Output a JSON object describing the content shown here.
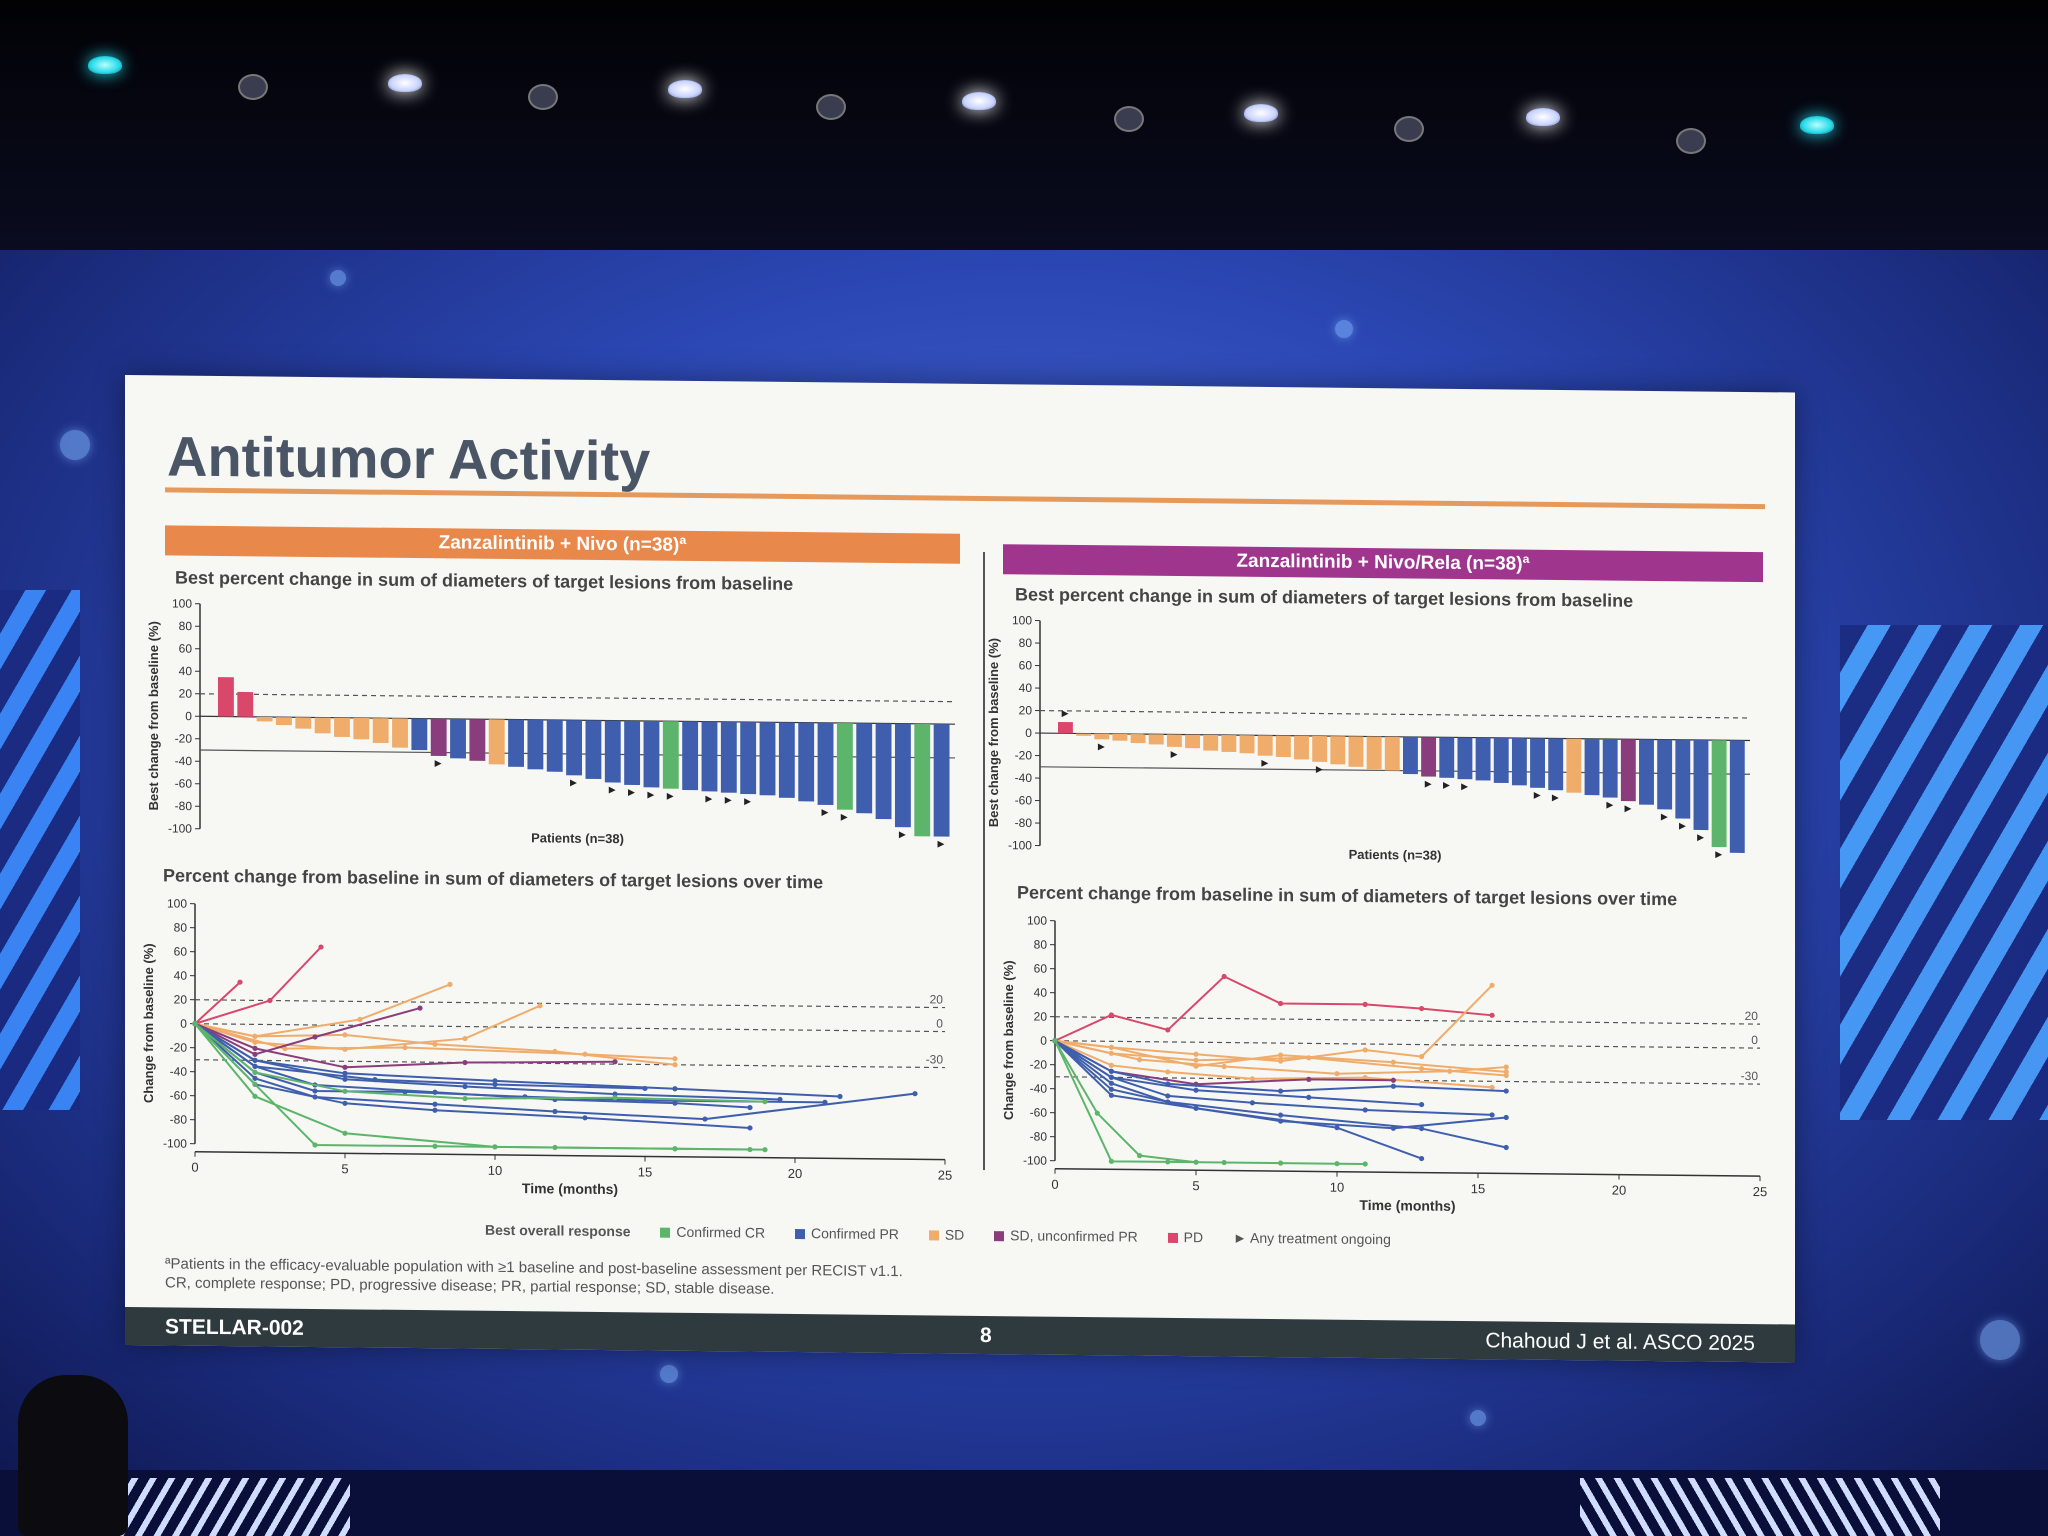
{
  "slide": {
    "title": "Antitumor Activity",
    "left_panel_title": "Zanzalintinib + Nivo (n=38)ª",
    "right_panel_title": "Zanzalintinib + Nivo/Rela (n=38)ª",
    "waterfall_subtitle": "Best percent change in sum of diameters of target lesions from baseline",
    "spider_subtitle": "Percent change from baseline in sum of diameters of target lesions over time",
    "footnote_1": "ªPatients in the efficacy-evaluable population with ≥1 baseline and post-baseline assessment per RECIST v1.1.",
    "footnote_2": "CR, complete response; PD, progressive disease; PR, partial response; SD, stable disease.",
    "footer_left": "STELLAR-002",
    "footer_page": "8",
    "footer_right": "Chahoud J et al. ASCO 2025",
    "legend": {
      "title": "Best overall response",
      "items": [
        {
          "label": "Confirmed CR",
          "color": "#5db56b"
        },
        {
          "label": "Confirmed PR",
          "color": "#3f5fae"
        },
        {
          "label": "SD",
          "color": "#efac6b"
        },
        {
          "label": "SD, unconfirmed PR",
          "color": "#8a3d7c"
        },
        {
          "label": "PD",
          "color": "#d9476a"
        }
      ],
      "ongoing_label": "Any treatment ongoing"
    },
    "colors": {
      "left_header": "#e8884a",
      "right_header": "#a0358e"
    }
  },
  "chart_data": [
    {
      "type": "bar",
      "panel": "Zanzalintinib + Nivo (n=38)ª",
      "title": "Best percent change in sum of diameters of target lesions from baseline",
      "xlabel": "Patients (n=38)",
      "ylabel": "Best change from baseline (%)",
      "ylim": [
        -100,
        100
      ],
      "yticks": [
        100,
        80,
        60,
        40,
        20,
        0,
        -20,
        -40,
        -60,
        -80,
        -100
      ],
      "reference_lines": [
        20,
        -30
      ],
      "values": [
        35,
        22,
        -4,
        -7,
        -10,
        -14,
        -17,
        -19,
        -22,
        -26,
        -28,
        -33,
        -35,
        -37,
        -40,
        -42,
        -44,
        -46,
        -49,
        -52,
        -55,
        -57,
        -59,
        -60,
        -61,
        -62,
        -63,
        -64,
        -65,
        -67,
        -70,
        -73,
        -77,
        -80,
        -85,
        -92,
        -100,
        -100
      ],
      "responses": [
        "PD",
        "PD",
        "SD",
        "SD",
        "SD",
        "SD",
        "SD",
        "SD",
        "SD",
        "SD",
        "PR",
        "SDu",
        "PR",
        "SDu",
        "SD",
        "PR",
        "PR",
        "PR",
        "PR",
        "PR",
        "PR",
        "PR",
        "PR",
        "CR",
        "PR",
        "PR",
        "PR",
        "PR",
        "PR",
        "PR",
        "PR",
        "PR",
        "CR",
        "PR",
        "PR",
        "PR",
        "CR",
        "PR"
      ],
      "ongoing": [
        false,
        false,
        false,
        false,
        false,
        false,
        false,
        false,
        false,
        false,
        false,
        true,
        false,
        false,
        false,
        false,
        false,
        false,
        true,
        false,
        true,
        true,
        true,
        true,
        false,
        true,
        true,
        true,
        false,
        false,
        false,
        true,
        true,
        false,
        false,
        true,
        false,
        true
      ]
    },
    {
      "type": "bar",
      "panel": "Zanzalintinib + Nivo/Rela (n=38)ª",
      "title": "Best percent change in sum of diameters of target lesions from baseline",
      "xlabel": "Patients (n=38)",
      "ylabel": "Best change from baseline (%)",
      "ylim": [
        -100,
        100
      ],
      "yticks": [
        100,
        80,
        60,
        40,
        20,
        0,
        -20,
        -40,
        -60,
        -80,
        -100
      ],
      "reference_lines": [
        20,
        -30
      ],
      "values": [
        10,
        -2,
        -5,
        -6,
        -8,
        -9,
        -11,
        -12,
        -14,
        -15,
        -16,
        -18,
        -19,
        -21,
        -23,
        -25,
        -27,
        -29,
        -30,
        -33,
        -35,
        -36,
        -37,
        -38,
        -40,
        -42,
        -44,
        -46,
        -48,
        -50,
        -52,
        -55,
        -58,
        -62,
        -70,
        -80,
        -95,
        -100
      ],
      "responses": [
        "PD",
        "SD",
        "SD",
        "SD",
        "SD",
        "SD",
        "SD",
        "SD",
        "SD",
        "SD",
        "SD",
        "SD",
        "SD",
        "SD",
        "SD",
        "SD",
        "SD",
        "SD",
        "SD",
        "PR",
        "SDu",
        "PR",
        "PR",
        "PR",
        "PR",
        "PR",
        "PR",
        "PR",
        "SD",
        "PR",
        "PR",
        "SDu",
        "PR",
        "PR",
        "PR",
        "PR",
        "CR",
        "PR"
      ],
      "ongoing": [
        true,
        false,
        true,
        false,
        false,
        false,
        true,
        false,
        false,
        false,
        false,
        true,
        false,
        false,
        true,
        false,
        false,
        false,
        false,
        false,
        true,
        true,
        true,
        false,
        false,
        false,
        true,
        true,
        false,
        false,
        true,
        true,
        false,
        true,
        true,
        true,
        true,
        false
      ]
    },
    {
      "type": "line",
      "panel": "Zanzalintinib + Nivo (n=38)ª",
      "title": "Percent change from baseline in sum of diameters of target lesions over time",
      "xlabel": "Time (months)",
      "ylabel": "Change from baseline (%)",
      "xlim": [
        0,
        25
      ],
      "ylim": [
        -100,
        100
      ],
      "xticks": [
        0,
        5,
        10,
        15,
        20,
        25
      ],
      "yticks": [
        100,
        80,
        60,
        40,
        20,
        0,
        -20,
        -40,
        -60,
        -80,
        -100
      ],
      "reference_lines": [
        20,
        0,
        -30
      ],
      "reference_labels": [
        "20",
        "0",
        "-30"
      ],
      "series": [
        {
          "response": "PD",
          "x": [
            0,
            1.5
          ],
          "y": [
            0,
            35
          ]
        },
        {
          "response": "PD",
          "x": [
            0,
            2.5,
            4.2
          ],
          "y": [
            0,
            20,
            65
          ]
        },
        {
          "response": "SD",
          "x": [
            0,
            2,
            5.5,
            8.5
          ],
          "y": [
            0,
            -10,
            5,
            35
          ]
        },
        {
          "response": "SD",
          "x": [
            0,
            2,
            5,
            9,
            11.5
          ],
          "y": [
            0,
            -15,
            -20,
            -10,
            18
          ]
        },
        {
          "response": "SD",
          "x": [
            0,
            3,
            7,
            13,
            16
          ],
          "y": [
            0,
            -20,
            -18,
            -22,
            -25
          ]
        },
        {
          "response": "SD",
          "x": [
            0,
            2,
            5,
            8,
            12,
            16
          ],
          "y": [
            0,
            -10,
            -8,
            -15,
            -20,
            -30
          ]
        },
        {
          "response": "SDu",
          "x": [
            0,
            2,
            4,
            7.5
          ],
          "y": [
            0,
            -25,
            -10,
            15
          ]
        },
        {
          "response": "SDu",
          "x": [
            0,
            2,
            5,
            9,
            14
          ],
          "y": [
            0,
            -20,
            -35,
            -30,
            -28
          ]
        },
        {
          "response": "PR",
          "x": [
            0,
            2,
            4,
            8,
            12,
            16,
            18.5
          ],
          "y": [
            0,
            -35,
            -50,
            -55,
            -60,
            -62,
            -65
          ]
        },
        {
          "response": "PR",
          "x": [
            0,
            2,
            4,
            7,
            11,
            15,
            21
          ],
          "y": [
            0,
            -40,
            -55,
            -55,
            -58,
            -60,
            -60
          ]
        },
        {
          "response": "PR",
          "x": [
            0,
            2,
            5,
            9,
            14,
            19.5
          ],
          "y": [
            0,
            -30,
            -45,
            -50,
            -55,
            -58
          ]
        },
        {
          "response": "PR",
          "x": [
            0,
            2,
            4,
            8,
            12,
            17,
            24
          ],
          "y": [
            0,
            -45,
            -60,
            -65,
            -70,
            -75,
            -52
          ]
        },
        {
          "response": "PR",
          "x": [
            0,
            2,
            5,
            10,
            16,
            21.5
          ],
          "y": [
            0,
            -30,
            -40,
            -45,
            -50,
            -55
          ]
        },
        {
          "response": "PR",
          "x": [
            0,
            2,
            5,
            8,
            13,
            18.5
          ],
          "y": [
            0,
            -50,
            -65,
            -70,
            -75,
            -82
          ]
        },
        {
          "response": "PR",
          "x": [
            0,
            2,
            6,
            10,
            15
          ],
          "y": [
            0,
            -35,
            -45,
            -48,
            -50
          ]
        },
        {
          "response": "CR",
          "x": [
            0,
            2,
            4,
            8,
            12,
            16,
            19
          ],
          "y": [
            0,
            -50,
            -100,
            -100,
            -100,
            -100,
            -100
          ]
        },
        {
          "response": "CR",
          "x": [
            0,
            2,
            5,
            10,
            16,
            18.5
          ],
          "y": [
            0,
            -60,
            -90,
            -100,
            -100,
            -100
          ]
        },
        {
          "response": "CR",
          "x": [
            0,
            2,
            5,
            9,
            14,
            19
          ],
          "y": [
            0,
            -40,
            -55,
            -60,
            -58,
            -60
          ]
        }
      ]
    },
    {
      "type": "line",
      "panel": "Zanzalintinib + Nivo/Rela (n=38)ª",
      "title": "Percent change from baseline in sum of diameters of target lesions over time",
      "xlabel": "Time (months)",
      "ylabel": "Change from baseline (%)",
      "xlim": [
        0,
        25
      ],
      "ylim": [
        -100,
        100
      ],
      "xticks": [
        0,
        5,
        10,
        15,
        20,
        25
      ],
      "yticks": [
        100,
        80,
        60,
        40,
        20,
        0,
        -20,
        -40,
        -60,
        -80,
        -100
      ],
      "reference_lines": [
        20,
        0,
        -30
      ],
      "reference_labels": [
        "20",
        "0",
        "-30"
      ],
      "series": [
        {
          "response": "PD",
          "x": [
            0,
            2,
            4,
            6,
            8,
            11,
            13,
            15.5
          ],
          "y": [
            0,
            22,
            10,
            55,
            33,
            33,
            30,
            25
          ]
        },
        {
          "response": "SD",
          "x": [
            0,
            2,
            5,
            8,
            11,
            13,
            15.5
          ],
          "y": [
            0,
            -5,
            -10,
            -15,
            -5,
            -10,
            50
          ]
        },
        {
          "response": "SD",
          "x": [
            0,
            2,
            5,
            9,
            13,
            16
          ],
          "y": [
            0,
            -10,
            -15,
            -12,
            -20,
            -25
          ]
        },
        {
          "response": "SD",
          "x": [
            0,
            3,
            6,
            10,
            14,
            16
          ],
          "y": [
            0,
            -15,
            -20,
            -25,
            -22,
            -18
          ]
        },
        {
          "response": "SD",
          "x": [
            0,
            2,
            5,
            8,
            12,
            16
          ],
          "y": [
            0,
            -5,
            -20,
            -10,
            -15,
            -22
          ]
        },
        {
          "response": "SD",
          "x": [
            0,
            2,
            4,
            7,
            11,
            15.5
          ],
          "y": [
            0,
            -20,
            -25,
            -30,
            -28,
            -35
          ]
        },
        {
          "response": "SDu",
          "x": [
            0,
            2,
            5,
            9,
            12
          ],
          "y": [
            0,
            -25,
            -35,
            -30,
            -30
          ]
        },
        {
          "response": "PR",
          "x": [
            0,
            2,
            4,
            7,
            11,
            15.5
          ],
          "y": [
            0,
            -30,
            -45,
            -50,
            -55,
            -58
          ]
        },
        {
          "response": "PR",
          "x": [
            0,
            2,
            5,
            8,
            12,
            16
          ],
          "y": [
            0,
            -40,
            -55,
            -65,
            -70,
            -60
          ]
        },
        {
          "response": "PR",
          "x": [
            0,
            2,
            4,
            8,
            13,
            16
          ],
          "y": [
            0,
            -35,
            -50,
            -60,
            -70,
            -85
          ]
        },
        {
          "response": "PR",
          "x": [
            0,
            2,
            5,
            10,
            13
          ],
          "y": [
            0,
            -45,
            -55,
            -70,
            -95
          ]
        },
        {
          "response": "PR",
          "x": [
            0,
            2,
            5,
            9,
            13
          ],
          "y": [
            0,
            -30,
            -40,
            -45,
            -50
          ]
        },
        {
          "response": "PR",
          "x": [
            0,
            2,
            4,
            8,
            12,
            16
          ],
          "y": [
            0,
            -25,
            -35,
            -40,
            -35,
            -38
          ]
        },
        {
          "response": "CR",
          "x": [
            0,
            2,
            4,
            6,
            8,
            10,
            11
          ],
          "y": [
            0,
            -100,
            -100,
            -100,
            -100,
            -100,
            -100
          ]
        },
        {
          "response": "CR",
          "x": [
            0,
            1.5,
            3,
            5
          ],
          "y": [
            0,
            -60,
            -95,
            -100
          ]
        }
      ]
    }
  ]
}
